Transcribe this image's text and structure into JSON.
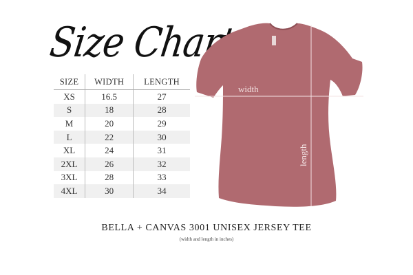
{
  "title": "Size Chart",
  "table": {
    "headers": [
      "SIZE",
      "WIDTH",
      "LENGTH"
    ],
    "rows": [
      [
        "XS",
        "16.5",
        "27"
      ],
      [
        "S",
        "18",
        "28"
      ],
      [
        "M",
        "20",
        "29"
      ],
      [
        "L",
        "22",
        "30"
      ],
      [
        "XL",
        "24",
        "31"
      ],
      [
        "2XL",
        "26",
        "32"
      ],
      [
        "3XL",
        "28",
        "33"
      ],
      [
        "4XL",
        "30",
        "34"
      ]
    ]
  },
  "shirt": {
    "color": "#b06a70",
    "width_label": "width",
    "length_label": "length"
  },
  "footer": {
    "title": "BELLA + CANVAS 3001 UNISEX JERSEY TEE",
    "subtitle": "(width and length in inches)"
  }
}
